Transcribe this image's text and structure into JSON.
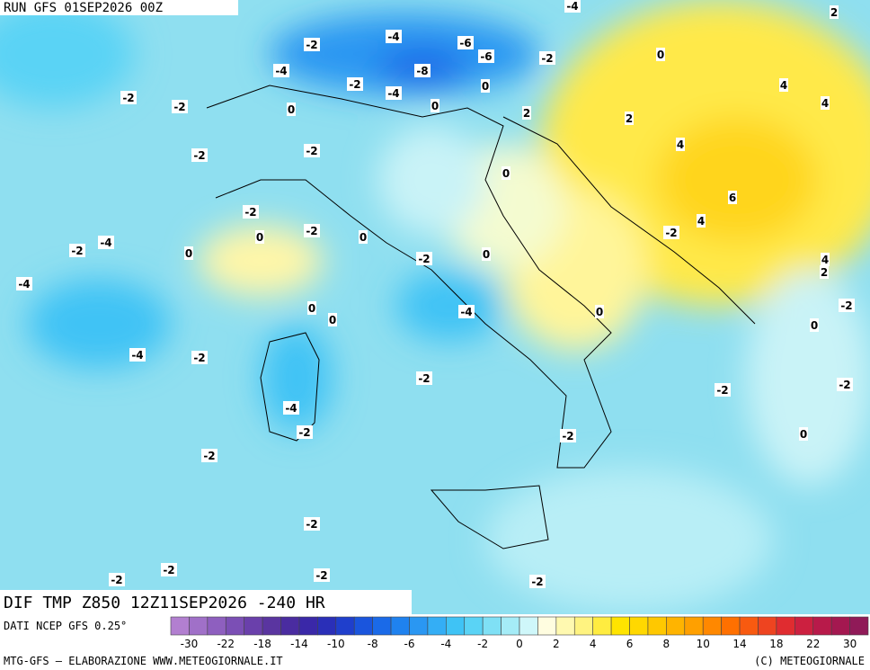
{
  "header": {
    "run": "RUN GFS 01SEP2026 00Z"
  },
  "map": {
    "field_label": "DIF TMP Z850 12Z11SEP2026 -240 HR",
    "contour_labels": [
      "-4",
      "2",
      "-2",
      "-4",
      "-6",
      "-6",
      "-2",
      "0",
      "-4",
      "-8",
      "-2",
      "-4",
      "0",
      "0",
      "-2",
      "-2",
      "0",
      "2",
      "2",
      "4",
      "4",
      "4",
      "-2",
      "-2",
      "0",
      "6",
      "-2",
      "4",
      "-2",
      "0",
      "0",
      "-2",
      "-4",
      "-2",
      "0",
      "0",
      "-2",
      "4",
      "2",
      "-4",
      "-2",
      "0",
      "-4",
      "0",
      "0",
      "0",
      "-4",
      "-2",
      "-2",
      "-2",
      "-2",
      "-4",
      "-2",
      "0",
      "-2",
      "-2",
      "-2",
      "-2",
      "-2",
      "-2",
      "-2"
    ]
  },
  "colorbar": {
    "source": "DATI NCEP GFS 0.25°",
    "labels": [
      -30,
      -22,
      -18,
      -14,
      -10,
      -8,
      -6,
      -4,
      -2,
      0,
      2,
      4,
      6,
      8,
      10,
      14,
      18,
      22,
      30
    ],
    "colors": [
      "#b27fd0",
      "#a070c8",
      "#8e5fbf",
      "#7b4fb5",
      "#6a40ab",
      "#5a35a0",
      "#4a2ca0",
      "#3a28a8",
      "#2a2fb8",
      "#1f3fcc",
      "#1a55dd",
      "#1a6ae8",
      "#1f82ef",
      "#2a97f2",
      "#34aef5",
      "#3fc3f5",
      "#5ad3f5",
      "#7fe0f5",
      "#a5ecf7",
      "#cff7fa",
      "#fffde0",
      "#fff9b0",
      "#fff380",
      "#ffec40",
      "#ffe400",
      "#ffd800",
      "#ffc800",
      "#ffb400",
      "#ffa000",
      "#ff8800",
      "#ff7000",
      "#f85a10",
      "#ee4420",
      "#e02c30",
      "#cc2040",
      "#b81a4a",
      "#a41850",
      "#901a58"
    ]
  },
  "footer": {
    "left": "MTG-GFS — ELABORAZIONE WWW.METEOGIORNALE.IT",
    "right": "(C) METEOGIORNALE"
  }
}
